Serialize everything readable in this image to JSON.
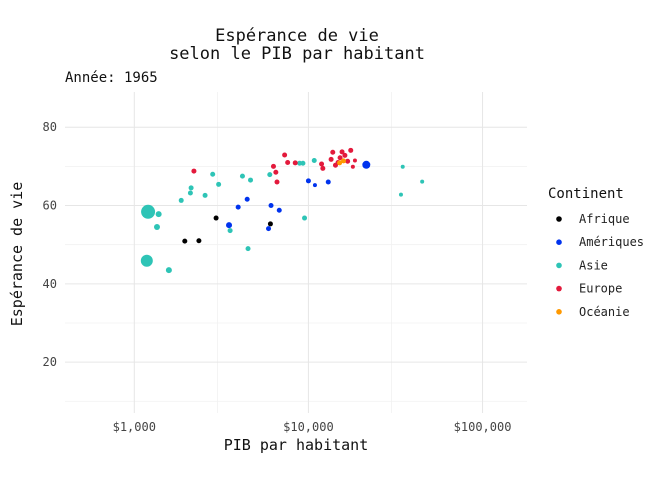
{
  "chart_data": {
    "type": "scatter",
    "title_line1": "Espérance de vie",
    "title_line2": "selon le PIB par habitant",
    "subtitle": "Année: 1965",
    "xlabel": "PIB par habitant",
    "ylabel": "Espérance de vie",
    "x_scale": "log10",
    "xlim": [
      400,
      180000
    ],
    "ylim": [
      7,
      89
    ],
    "x_ticks": [
      {
        "value": 1000,
        "label": "$1,000"
      },
      {
        "value": 10000,
        "label": "$10,000"
      },
      {
        "value": 100000,
        "label": "$100,000"
      }
    ],
    "y_ticks": [
      {
        "value": 20,
        "label": "20"
      },
      {
        "value": 40,
        "label": "40"
      },
      {
        "value": 60,
        "label": "60"
      },
      {
        "value": 80,
        "label": "80"
      }
    ],
    "grid": true,
    "legend_title": "Continent",
    "legend_position": "right",
    "continents": [
      {
        "name": "Afrique",
        "color": "#000000"
      },
      {
        "name": "Amériques",
        "color": "#0033ee"
      },
      {
        "name": "Asie",
        "color": "#2ec4b6"
      },
      {
        "name": "Europe",
        "color": "#e31a3c"
      },
      {
        "name": "Océanie",
        "color": "#ff9900"
      }
    ],
    "points": [
      {
        "continent": "Asie",
        "gdp": 1200,
        "life": 58.4,
        "size": 7
      },
      {
        "continent": "Asie",
        "gdp": 1180,
        "life": 45.9,
        "size": 6
      },
      {
        "continent": "Asie",
        "gdp": 1350,
        "life": 54.5,
        "size": 3
      },
      {
        "continent": "Asie",
        "gdp": 1380,
        "life": 57.8,
        "size": 3
      },
      {
        "continent": "Asie",
        "gdp": 1580,
        "life": 43.5,
        "size": 3
      },
      {
        "continent": "Asie",
        "gdp": 1860,
        "life": 61.3,
        "size": 2.5
      },
      {
        "continent": "Asie",
        "gdp": 2100,
        "life": 63.2,
        "size": 2.5
      },
      {
        "continent": "Asie",
        "gdp": 2120,
        "life": 64.5,
        "size": 2.5
      },
      {
        "continent": "Asie",
        "gdp": 2550,
        "life": 62.6,
        "size": 2.5
      },
      {
        "continent": "Asie",
        "gdp": 2820,
        "life": 68.0,
        "size": 2.5
      },
      {
        "continent": "Asie",
        "gdp": 3050,
        "life": 65.4,
        "size": 2.5
      },
      {
        "continent": "Asie",
        "gdp": 3550,
        "life": 53.6,
        "size": 2.5
      },
      {
        "continent": "Asie",
        "gdp": 4180,
        "life": 67.5,
        "size": 2.5
      },
      {
        "continent": "Asie",
        "gdp": 4650,
        "life": 66.5,
        "size": 2.5
      },
      {
        "continent": "Asie",
        "gdp": 4500,
        "life": 49.0,
        "size": 2.5
      },
      {
        "continent": "Asie",
        "gdp": 6000,
        "life": 67.9,
        "size": 2.5
      },
      {
        "continent": "Asie",
        "gdp": 8900,
        "life": 70.8,
        "size": 2.5
      },
      {
        "continent": "Asie",
        "gdp": 9300,
        "life": 70.8,
        "size": 2.5
      },
      {
        "continent": "Asie",
        "gdp": 9500,
        "life": 56.8,
        "size": 2.5
      },
      {
        "continent": "Asie",
        "gdp": 10800,
        "life": 71.5,
        "size": 2.5
      },
      {
        "continent": "Asie",
        "gdp": 34800,
        "life": 69.9,
        "size": 2
      },
      {
        "continent": "Asie",
        "gdp": 34000,
        "life": 62.8,
        "size": 2
      },
      {
        "continent": "Asie",
        "gdp": 45000,
        "life": 66.1,
        "size": 2
      },
      {
        "continent": "Afrique",
        "gdp": 1950,
        "life": 50.9,
        "size": 2.5
      },
      {
        "continent": "Afrique",
        "gdp": 2350,
        "life": 51.0,
        "size": 2.5
      },
      {
        "continent": "Afrique",
        "gdp": 2950,
        "life": 56.8,
        "size": 2.5
      },
      {
        "continent": "Afrique",
        "gdp": 6050,
        "life": 55.3,
        "size": 2.5
      },
      {
        "continent": "Amériques",
        "gdp": 3500,
        "life": 55.0,
        "size": 3
      },
      {
        "continent": "Amériques",
        "gdp": 3950,
        "life": 59.6,
        "size": 2.5
      },
      {
        "continent": "Amériques",
        "gdp": 4450,
        "life": 61.6,
        "size": 2.5
      },
      {
        "continent": "Amériques",
        "gdp": 5900,
        "life": 54.1,
        "size": 2.5
      },
      {
        "continent": "Amériques",
        "gdp": 6100,
        "life": 60.0,
        "size": 2.5
      },
      {
        "continent": "Amériques",
        "gdp": 6800,
        "life": 58.8,
        "size": 2.5
      },
      {
        "continent": "Amériques",
        "gdp": 10000,
        "life": 66.3,
        "size": 2.5
      },
      {
        "continent": "Amériques",
        "gdp": 10900,
        "life": 65.2,
        "size": 2
      },
      {
        "continent": "Amériques",
        "gdp": 13000,
        "life": 66.0,
        "size": 2.5
      },
      {
        "continent": "Amériques",
        "gdp": 21500,
        "life": 70.4,
        "size": 4
      },
      {
        "continent": "Europe",
        "gdp": 2200,
        "life": 68.8,
        "size": 2.5
      },
      {
        "continent": "Europe",
        "gdp": 6300,
        "life": 70.0,
        "size": 2.5
      },
      {
        "continent": "Europe",
        "gdp": 6500,
        "life": 68.5,
        "size": 2.5
      },
      {
        "continent": "Europe",
        "gdp": 6600,
        "life": 66.0,
        "size": 2.5
      },
      {
        "continent": "Europe",
        "gdp": 7300,
        "life": 72.9,
        "size": 2.5
      },
      {
        "continent": "Europe",
        "gdp": 7600,
        "life": 71.0,
        "size": 2.5
      },
      {
        "continent": "Europe",
        "gdp": 8400,
        "life": 70.9,
        "size": 2.5
      },
      {
        "continent": "Europe",
        "gdp": 11900,
        "life": 70.6,
        "size": 2.5
      },
      {
        "continent": "Europe",
        "gdp": 12100,
        "life": 69.5,
        "size": 2.5
      },
      {
        "continent": "Europe",
        "gdp": 13500,
        "life": 71.8,
        "size": 2.5
      },
      {
        "continent": "Europe",
        "gdp": 13800,
        "life": 73.6,
        "size": 2.5
      },
      {
        "continent": "Europe",
        "gdp": 14300,
        "life": 70.3,
        "size": 2.5
      },
      {
        "continent": "Europe",
        "gdp": 14800,
        "life": 71.0,
        "size": 2.5
      },
      {
        "continent": "Europe",
        "gdp": 15200,
        "life": 72.2,
        "size": 2.5
      },
      {
        "continent": "Europe",
        "gdp": 15600,
        "life": 73.7,
        "size": 2.5
      },
      {
        "continent": "Europe",
        "gdp": 16200,
        "life": 72.8,
        "size": 2.5
      },
      {
        "continent": "Europe",
        "gdp": 16800,
        "life": 71.3,
        "size": 2.5
      },
      {
        "continent": "Europe",
        "gdp": 17500,
        "life": 74.1,
        "size": 2.5
      },
      {
        "continent": "Europe",
        "gdp": 18000,
        "life": 69.9,
        "size": 2
      },
      {
        "continent": "Europe",
        "gdp": 18500,
        "life": 71.5,
        "size": 2
      },
      {
        "continent": "Océanie",
        "gdp": 15100,
        "life": 70.9,
        "size": 2.5
      },
      {
        "continent": "Océanie",
        "gdp": 15900,
        "life": 71.4,
        "size": 2.5
      }
    ]
  }
}
